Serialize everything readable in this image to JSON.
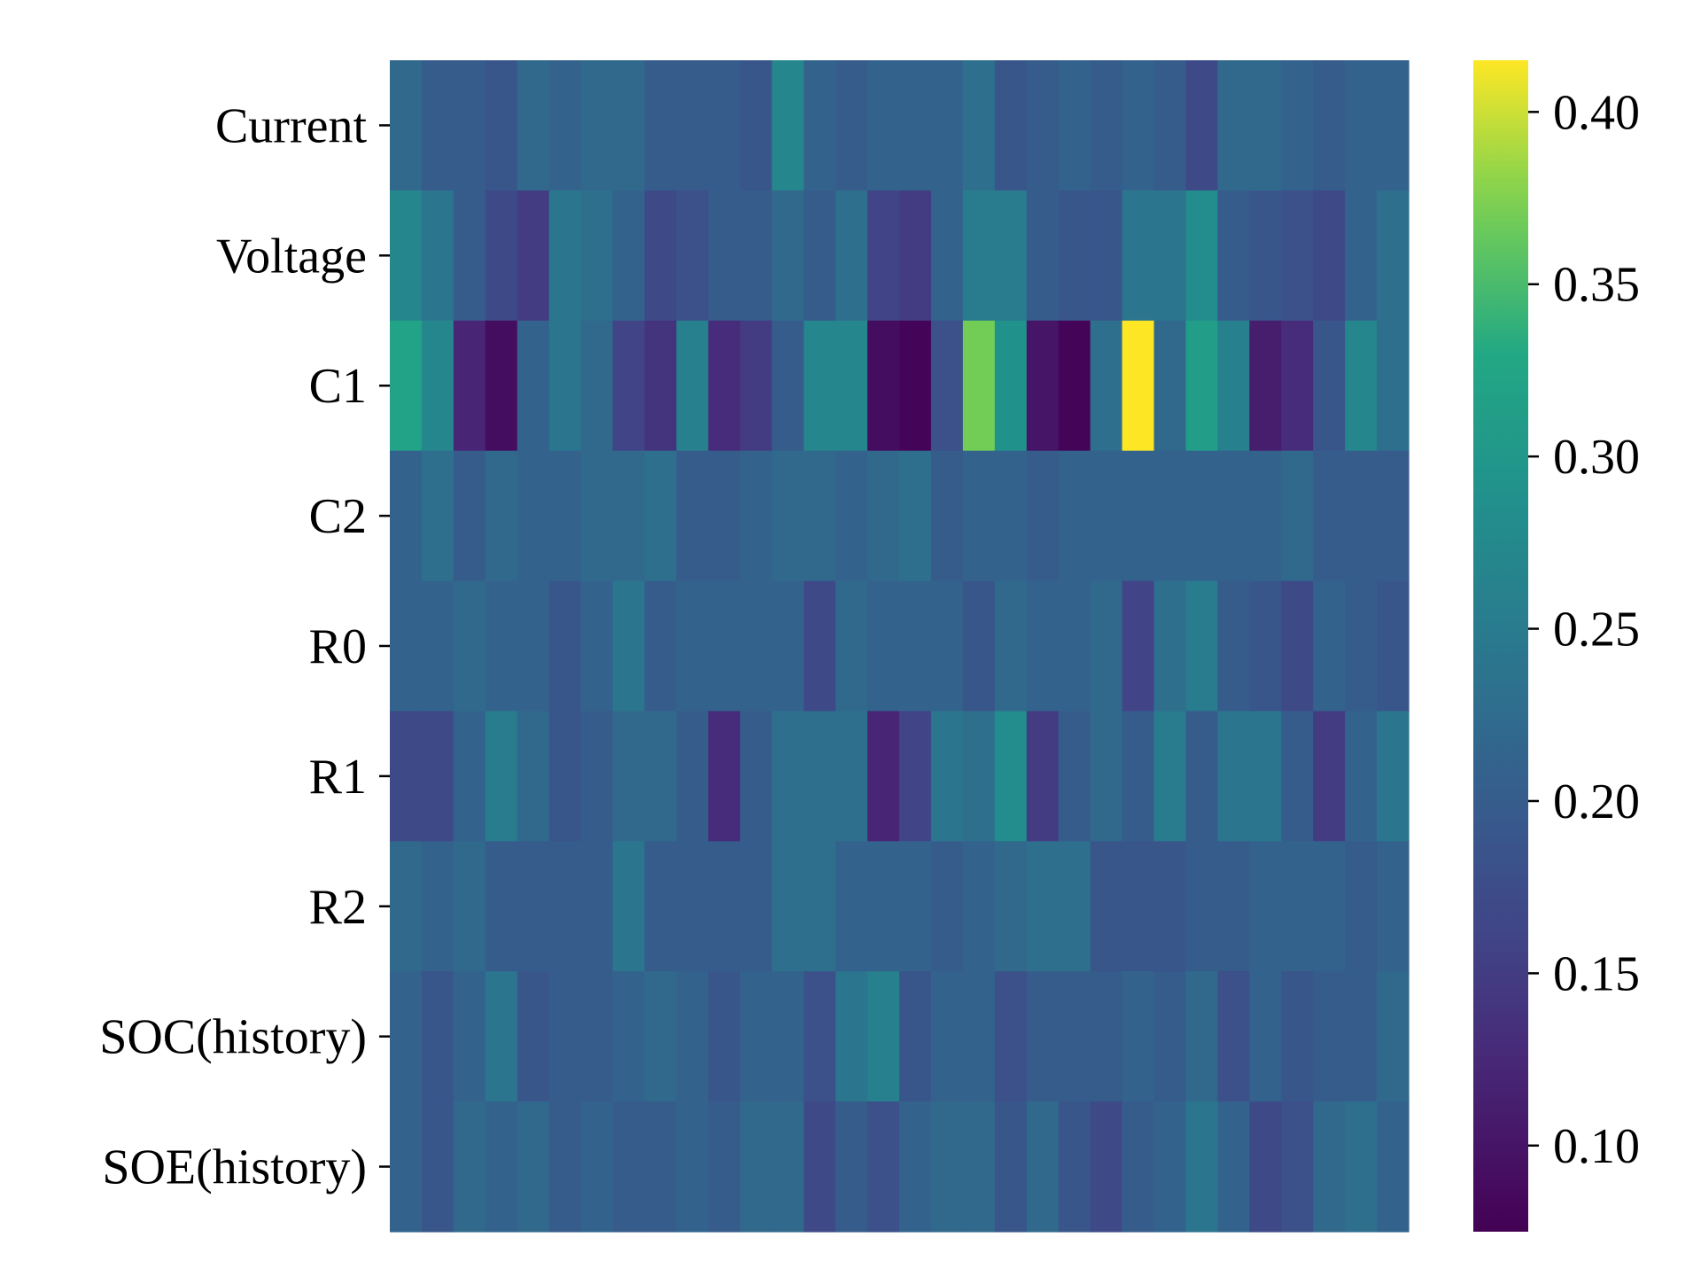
{
  "chart_data": {
    "type": "heatmap",
    "title": "",
    "xlabel": "",
    "ylabel": "",
    "rows": [
      "Current",
      "Voltage",
      "C1",
      "C2",
      "R0",
      "R1",
      "R2",
      "SOC(history)",
      "SOE(history)"
    ],
    "num_columns": 32,
    "values": [
      [
        0.22,
        0.2,
        0.2,
        0.19,
        0.22,
        0.21,
        0.22,
        0.22,
        0.2,
        0.2,
        0.2,
        0.19,
        0.27,
        0.21,
        0.2,
        0.21,
        0.21,
        0.21,
        0.23,
        0.19,
        0.2,
        0.21,
        0.2,
        0.21,
        0.2,
        0.17,
        0.22,
        0.22,
        0.21,
        0.2,
        0.21,
        0.21
      ],
      [
        0.27,
        0.24,
        0.2,
        0.17,
        0.15,
        0.24,
        0.23,
        0.21,
        0.17,
        0.18,
        0.2,
        0.2,
        0.22,
        0.2,
        0.23,
        0.16,
        0.15,
        0.21,
        0.25,
        0.25,
        0.2,
        0.19,
        0.19,
        0.24,
        0.24,
        0.28,
        0.2,
        0.19,
        0.18,
        0.17,
        0.21,
        0.23
      ],
      [
        0.32,
        0.27,
        0.12,
        0.09,
        0.21,
        0.24,
        0.22,
        0.16,
        0.14,
        0.26,
        0.13,
        0.15,
        0.2,
        0.27,
        0.27,
        0.09,
        0.08,
        0.18,
        0.37,
        0.29,
        0.1,
        0.08,
        0.23,
        0.42,
        0.22,
        0.31,
        0.26,
        0.11,
        0.13,
        0.19,
        0.27,
        0.23
      ],
      [
        0.21,
        0.23,
        0.2,
        0.22,
        0.21,
        0.21,
        0.22,
        0.22,
        0.23,
        0.2,
        0.2,
        0.21,
        0.22,
        0.22,
        0.21,
        0.22,
        0.23,
        0.2,
        0.21,
        0.21,
        0.2,
        0.21,
        0.21,
        0.21,
        0.21,
        0.21,
        0.21,
        0.21,
        0.22,
        0.2,
        0.2,
        0.2
      ],
      [
        0.21,
        0.21,
        0.22,
        0.21,
        0.21,
        0.19,
        0.21,
        0.24,
        0.2,
        0.21,
        0.21,
        0.21,
        0.21,
        0.17,
        0.22,
        0.21,
        0.21,
        0.21,
        0.19,
        0.22,
        0.21,
        0.21,
        0.22,
        0.16,
        0.23,
        0.25,
        0.2,
        0.19,
        0.17,
        0.21,
        0.2,
        0.19
      ],
      [
        0.17,
        0.17,
        0.21,
        0.25,
        0.22,
        0.19,
        0.2,
        0.22,
        0.22,
        0.2,
        0.13,
        0.2,
        0.23,
        0.23,
        0.23,
        0.12,
        0.16,
        0.24,
        0.23,
        0.28,
        0.15,
        0.2,
        0.22,
        0.2,
        0.25,
        0.2,
        0.24,
        0.24,
        0.2,
        0.15,
        0.21,
        0.24
      ],
      [
        0.22,
        0.21,
        0.22,
        0.2,
        0.2,
        0.2,
        0.2,
        0.24,
        0.2,
        0.2,
        0.2,
        0.2,
        0.23,
        0.23,
        0.21,
        0.21,
        0.21,
        0.2,
        0.21,
        0.22,
        0.23,
        0.23,
        0.19,
        0.19,
        0.19,
        0.2,
        0.2,
        0.21,
        0.21,
        0.21,
        0.2,
        0.21
      ],
      [
        0.21,
        0.19,
        0.21,
        0.24,
        0.19,
        0.2,
        0.2,
        0.21,
        0.22,
        0.21,
        0.19,
        0.21,
        0.21,
        0.18,
        0.24,
        0.26,
        0.19,
        0.21,
        0.21,
        0.18,
        0.2,
        0.2,
        0.2,
        0.21,
        0.2,
        0.22,
        0.18,
        0.21,
        0.19,
        0.2,
        0.2,
        0.22
      ],
      [
        0.21,
        0.19,
        0.22,
        0.21,
        0.22,
        0.2,
        0.21,
        0.2,
        0.2,
        0.21,
        0.2,
        0.22,
        0.22,
        0.17,
        0.2,
        0.18,
        0.21,
        0.22,
        0.22,
        0.19,
        0.22,
        0.19,
        0.17,
        0.2,
        0.21,
        0.24,
        0.21,
        0.17,
        0.18,
        0.22,
        0.23,
        0.21
      ]
    ],
    "colormap": "viridis",
    "colorbar": {
      "min": 0.075,
      "max": 0.415,
      "ticks": [
        "0.10",
        "0.15",
        "0.20",
        "0.25",
        "0.30",
        "0.35",
        "0.40"
      ]
    },
    "grid": false,
    "legend": "colorbar-right"
  }
}
